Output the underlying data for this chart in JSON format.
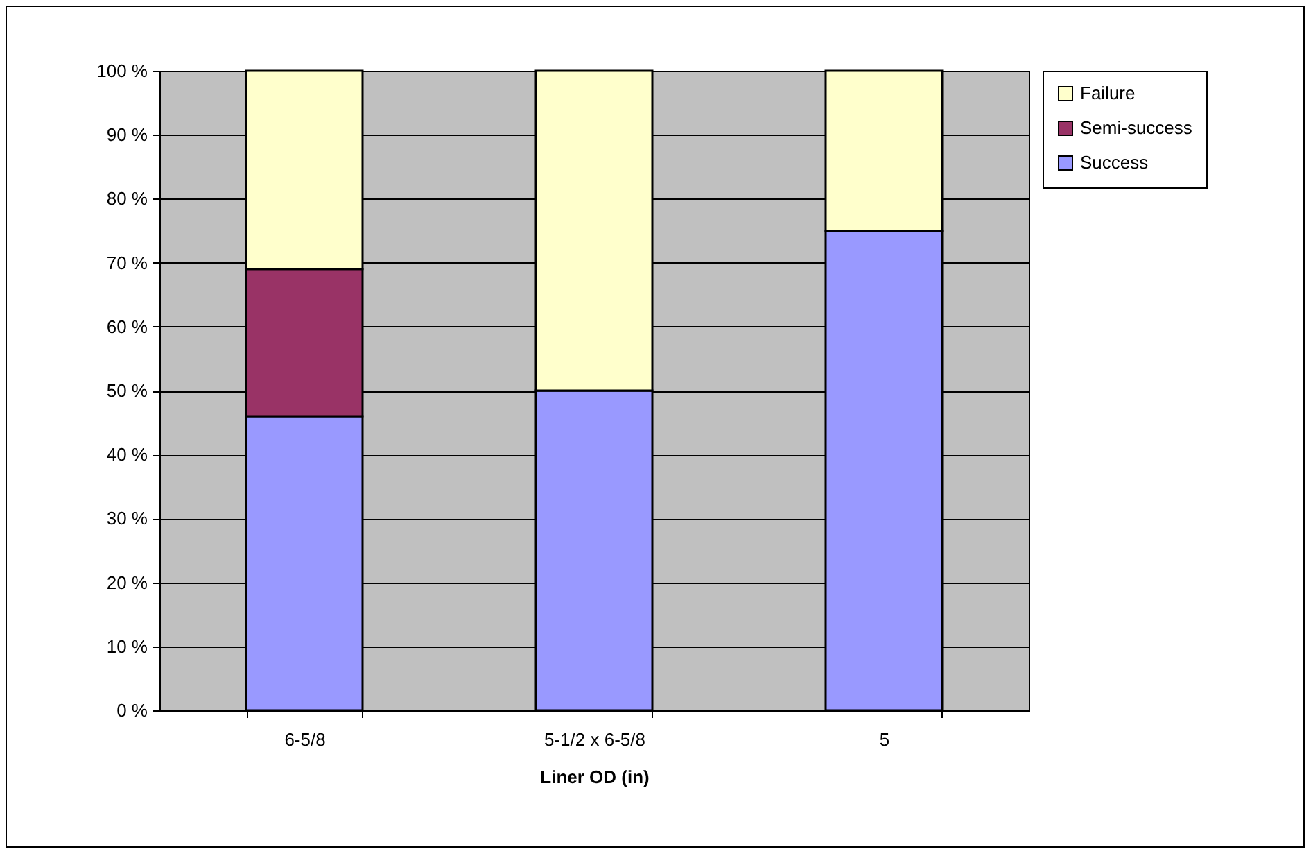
{
  "chart_data": {
    "type": "bar",
    "stacked": true,
    "xlabel": "Liner OD (in)",
    "categories": [
      "6-5/8",
      "5-1/2 x 6-5/8",
      "5"
    ],
    "series": [
      {
        "name": "Success",
        "color": "#9999ff",
        "values": [
          46,
          50,
          75
        ]
      },
      {
        "name": "Semi-success",
        "color": "#993366",
        "values": [
          23,
          0,
          0
        ]
      },
      {
        "name": "Failure",
        "color": "#ffffcc",
        "values": [
          31,
          50,
          25
        ]
      }
    ],
    "ylim": [
      0,
      100
    ],
    "yticks": [
      {
        "value": 0,
        "label": "0 %"
      },
      {
        "value": 10,
        "label": "10 %"
      },
      {
        "value": 20,
        "label": "20 %"
      },
      {
        "value": 30,
        "label": "30 %"
      },
      {
        "value": 40,
        "label": "40 %"
      },
      {
        "value": 50,
        "label": "50 %"
      },
      {
        "value": 60,
        "label": "60 %"
      },
      {
        "value": 70,
        "label": "70 %"
      },
      {
        "value": 80,
        "label": "80 %"
      },
      {
        "value": 90,
        "label": "90 %"
      },
      {
        "value": 100,
        "label": "100 %"
      }
    ],
    "grid": "y",
    "legend": "right"
  }
}
